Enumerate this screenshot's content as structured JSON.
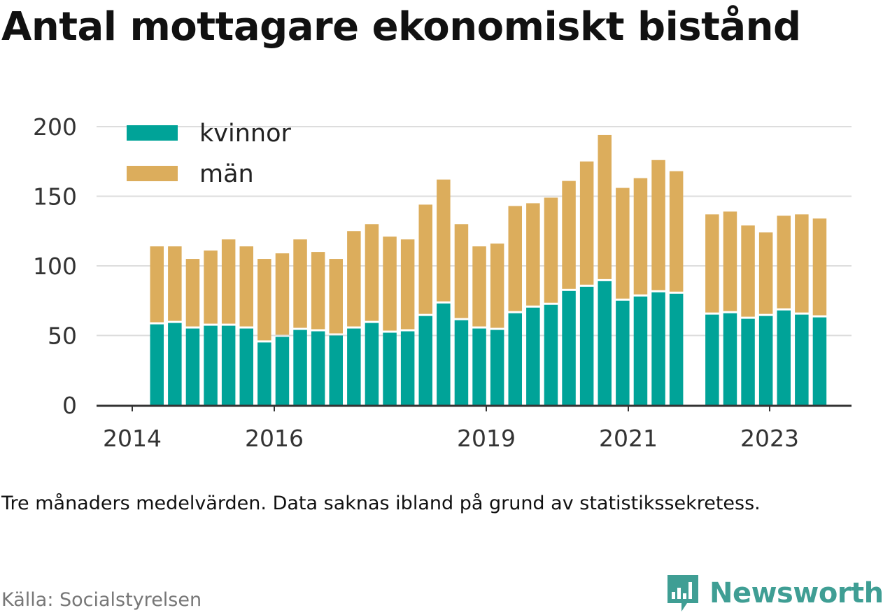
{
  "title": "Antal mottagare ekonomiskt bistånd",
  "note": "Tre månaders medelvärden. Data saknas ibland på grund av statistikssekretess.",
  "source": "Källa: Socialstyrelsen",
  "brand": "Newsworthy",
  "colors": {
    "kvinnor": "#00a398",
    "man": "#dcad5c",
    "grid": "#dddddd",
    "axis": "#333333",
    "brand": "#3f9e94"
  },
  "chart_data": {
    "type": "bar",
    "stacked": true,
    "ylim": [
      0,
      200
    ],
    "yticks": [
      0,
      50,
      100,
      150,
      200
    ],
    "xticks": [
      "2014",
      "2016",
      "2019",
      "2021",
      "2023"
    ],
    "legend": {
      "position": "top-left",
      "entries": [
        "kvinnor",
        "män"
      ]
    },
    "series": [
      {
        "name": "kvinnor",
        "values": [
          58,
          59,
          55,
          57,
          57,
          55,
          45,
          49,
          54,
          53,
          50,
          55,
          59,
          52,
          53,
          64,
          73,
          61,
          55,
          54,
          66,
          70,
          72,
          82,
          85,
          89,
          75,
          78,
          81,
          80,
          null,
          65,
          66,
          62,
          64,
          68,
          65,
          63
        ]
      },
      {
        "name": "män",
        "values": [
          56,
          55,
          50,
          54,
          62,
          59,
          60,
          60,
          65,
          57,
          55,
          70,
          71,
          69,
          66,
          80,
          89,
          69,
          59,
          62,
          77,
          75,
          77,
          79,
          90,
          105,
          81,
          85,
          95,
          88,
          null,
          72,
          73,
          67,
          60,
          68,
          72,
          71
        ]
      }
    ]
  }
}
